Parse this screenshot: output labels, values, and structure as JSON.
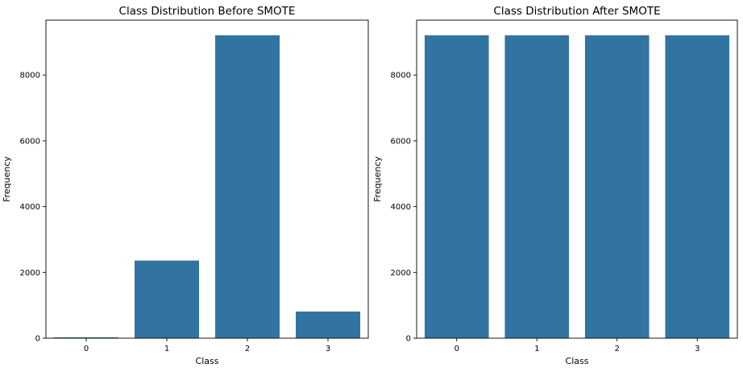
{
  "chart_data": [
    {
      "type": "bar",
      "title": "Class Distribution Before SMOTE",
      "xlabel": "Class",
      "ylabel": "Frequency",
      "categories": [
        "0",
        "1",
        "2",
        "3"
      ],
      "values": [
        25,
        2360,
        9210,
        810
      ],
      "ylim": [
        0,
        9670
      ],
      "yticks": [
        0,
        2000,
        4000,
        6000,
        8000
      ],
      "grid": false,
      "bar_color": "#3274a1"
    },
    {
      "type": "bar",
      "title": "Class Distribution After SMOTE",
      "xlabel": "Class",
      "ylabel": "Frequency",
      "categories": [
        "0",
        "1",
        "2",
        "3"
      ],
      "values": [
        9210,
        9210,
        9210,
        9210
      ],
      "ylim": [
        0,
        9670
      ],
      "yticks": [
        0,
        2000,
        4000,
        6000,
        8000
      ],
      "grid": false,
      "bar_color": "#3274a1"
    }
  ]
}
